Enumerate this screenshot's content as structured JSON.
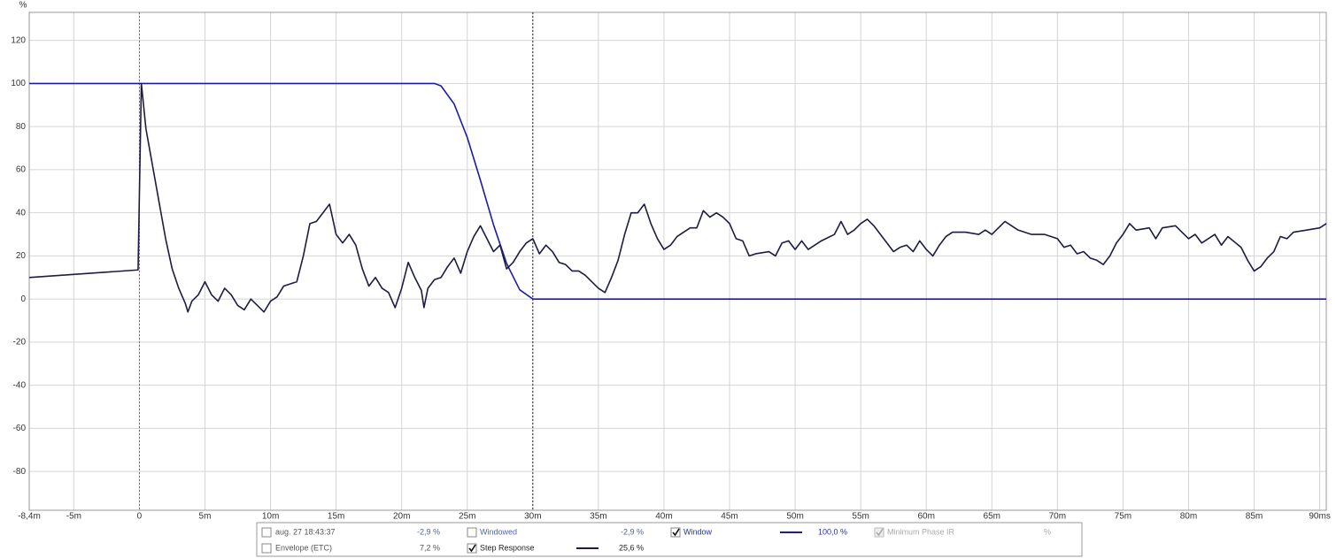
{
  "chart_data": {
    "type": "line",
    "y_unit": "%",
    "xlim": [
      -8.4,
      90.5
    ],
    "ylim": [
      -98,
      133
    ],
    "grid": true,
    "xticks": [
      {
        "value": -8.4,
        "label": "-8,4m"
      },
      {
        "value": -5,
        "label": "-5m"
      },
      0,
      {
        "value": 5,
        "label": "5m"
      },
      {
        "value": 10,
        "label": "10m"
      },
      {
        "value": 15,
        "label": "15m"
      },
      {
        "value": 20,
        "label": "20m"
      },
      {
        "value": 25,
        "label": "25m"
      },
      {
        "value": 30,
        "label": "30m"
      },
      {
        "value": 35,
        "label": "35m"
      },
      {
        "value": 40,
        "label": "40m"
      },
      {
        "value": 45,
        "label": "45m"
      },
      {
        "value": 50,
        "label": "50m"
      },
      {
        "value": 55,
        "label": "55m"
      },
      {
        "value": 60,
        "label": "60m"
      },
      {
        "value": 65,
        "label": "65m"
      },
      {
        "value": 70,
        "label": "70m"
      },
      {
        "value": 75,
        "label": "75m"
      },
      {
        "value": 80,
        "label": "80m"
      },
      {
        "value": 85,
        "label": "85m"
      },
      {
        "value": 90,
        "label": "90ms"
      }
    ],
    "yticks": [
      -80,
      -60,
      -40,
      -20,
      0,
      20,
      40,
      60,
      80,
      100,
      120
    ],
    "cursors": [
      {
        "x": 0,
        "color": "#d04040"
      },
      {
        "x": 30,
        "color": "#202020"
      }
    ],
    "series": [
      {
        "name": "Window",
        "color": "#1a1ab0",
        "readout": "100,0 %",
        "checked": true,
        "x": [
          -8.4,
          22.5,
          23,
          24,
          25,
          26,
          27,
          28,
          29,
          30,
          90.5
        ],
        "values": [
          100,
          100,
          98.9,
          90.5,
          75,
          55.2,
          34.5,
          16.5,
          4.3,
          0,
          0
        ]
      },
      {
        "name": "Step Response",
        "color": "#1c1c44",
        "readout": "25,6 %",
        "checked": true,
        "x": [
          -8.4,
          -0.1,
          0.15,
          0.5,
          1,
          1.5,
          2,
          2.5,
          3,
          3.5,
          3.7,
          4,
          4.5,
          5,
          5.5,
          6,
          6.5,
          7,
          7.5,
          8,
          8.5,
          9,
          9.5,
          10,
          10.5,
          11,
          12,
          12.5,
          13,
          13.5,
          14,
          14.5,
          15,
          15.5,
          16,
          16.5,
          17,
          17.5,
          18,
          18.5,
          19,
          19.5,
          20,
          20.5,
          21,
          21.5,
          21.7,
          22,
          22.5,
          23,
          23.5,
          24,
          24.5,
          25,
          25.5,
          26,
          26.5,
          27,
          27.5,
          28,
          28.5,
          29,
          29.5,
          30,
          30.5,
          31,
          31.5,
          32,
          32.5,
          33,
          33.5,
          34,
          34.5,
          35,
          35.5,
          36,
          36.5,
          37,
          37.5,
          38,
          38.5,
          39,
          39.5,
          40,
          40.5,
          41,
          42,
          42.5,
          43,
          43.5,
          44,
          44.5,
          45,
          45.5,
          46,
          46.5,
          47,
          48,
          48.5,
          49,
          49.5,
          50,
          50.5,
          51,
          52,
          53,
          53.5,
          54,
          54.5,
          55,
          55.5,
          56,
          57,
          57.5,
          58,
          58.5,
          59,
          59.5,
          60,
          60.5,
          61,
          61.5,
          62,
          63,
          64,
          64.5,
          65,
          65.5,
          66,
          67,
          68,
          69,
          70,
          70.5,
          71,
          71.5,
          72,
          72.5,
          73,
          73.5,
          74,
          74.5,
          75,
          75.5,
          76,
          77,
          77.5,
          78,
          79,
          80,
          80.5,
          81,
          82,
          82.5,
          83,
          84,
          84.5,
          85,
          85.5,
          86,
          86.5,
          87,
          87.5,
          88,
          89,
          90,
          90.5
        ],
        "values": [
          10,
          13.5,
          100,
          79,
          62,
          45,
          28,
          14,
          5,
          -2,
          -6,
          -1,
          2,
          8,
          2,
          -1,
          5,
          2,
          -3,
          -5,
          0,
          -3,
          -6,
          -1,
          1,
          6,
          8,
          20,
          35,
          36,
          40,
          44,
          30,
          26,
          30,
          25,
          14,
          6,
          10,
          5,
          3,
          -4,
          5,
          17,
          10,
          4,
          -4,
          5,
          9,
          10,
          15,
          19,
          12,
          22,
          29,
          34,
          28,
          22,
          25,
          14,
          17,
          22,
          26,
          28,
          21,
          25,
          22,
          17,
          16,
          13,
          13,
          11,
          8,
          5,
          3,
          10,
          18,
          30,
          40,
          40,
          44,
          35,
          28,
          23,
          25,
          29,
          33,
          33,
          41,
          38,
          40,
          38,
          35,
          28,
          27,
          20,
          21,
          22,
          20,
          26,
          27,
          23,
          27,
          23,
          27,
          30,
          36,
          30,
          32,
          35,
          37,
          34,
          26,
          22,
          24,
          25,
          22,
          27,
          23,
          20,
          25,
          29,
          31,
          31,
          30,
          32,
          30,
          33,
          36,
          32,
          30,
          30,
          28,
          24,
          25,
          21,
          22,
          19,
          18,
          16,
          20,
          26,
          30,
          35,
          32,
          33,
          28,
          33,
          34,
          28,
          30,
          26,
          30,
          25,
          29,
          24,
          18,
          13,
          15,
          19,
          22,
          29,
          28,
          31,
          32,
          33,
          35
        ]
      }
    ],
    "other_traces": [
      {
        "name": "aug. 27 18:43:37",
        "readout": "-2,9 %",
        "checked": false
      },
      {
        "name": "Windowed",
        "readout": "-2,9 %",
        "checked": false
      },
      {
        "name": "Minimum Phase IR",
        "readout": "%",
        "checked": true
      },
      {
        "name": "Envelope (ETC)",
        "readout": "7,2 %",
        "checked": false
      }
    ]
  }
}
